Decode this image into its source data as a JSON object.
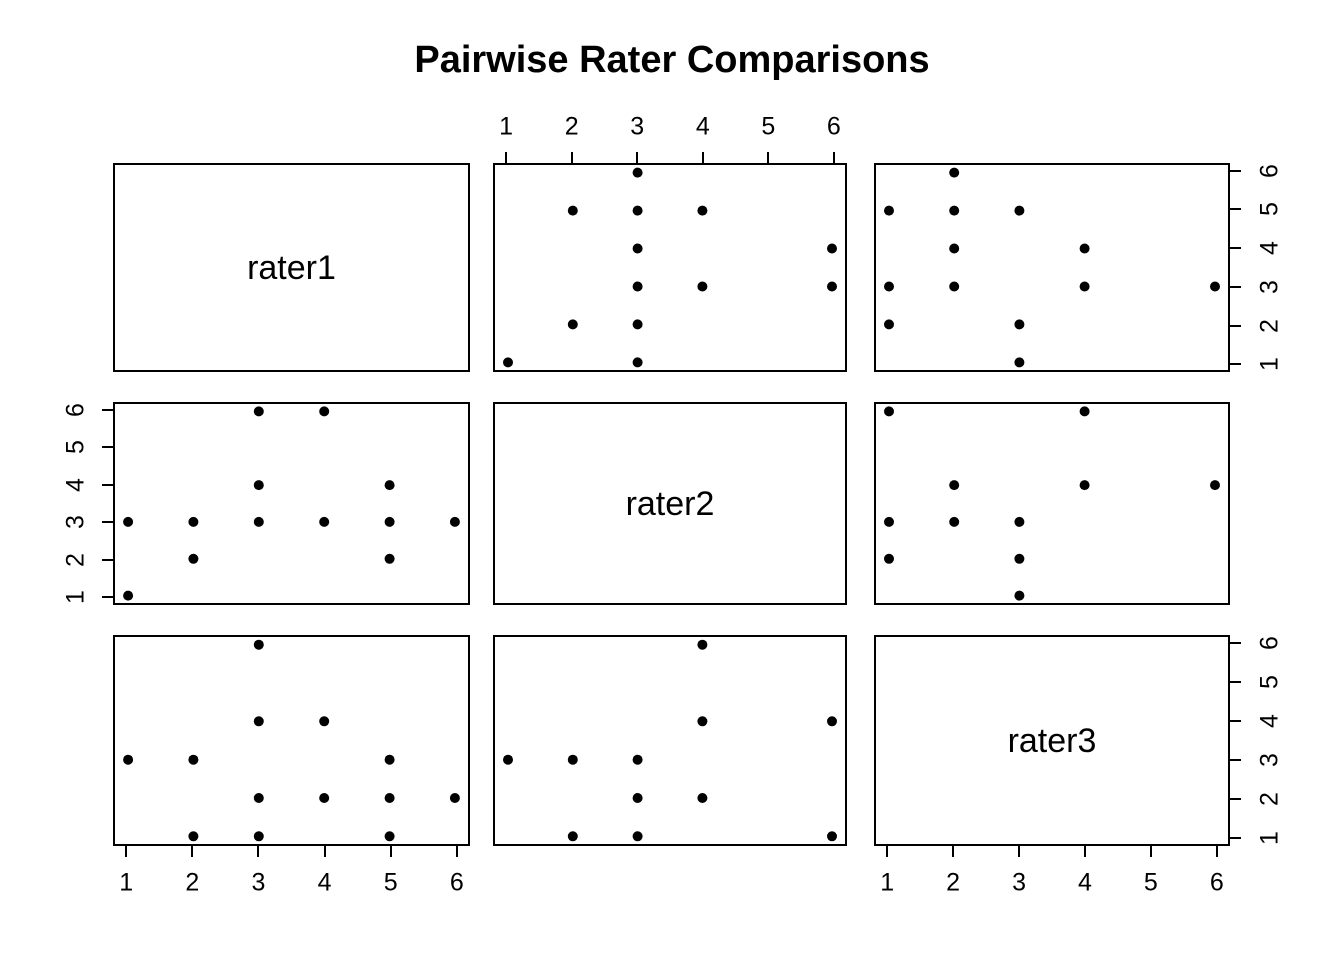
{
  "chart_data": {
    "type": "scatter",
    "subtype": "pairs_matrix",
    "title": "Pairwise Rater Comparisons",
    "variables": [
      "rater1",
      "rater2",
      "rater3"
    ],
    "axis_range": [
      1,
      6
    ],
    "axis_ticks": [
      1,
      2,
      3,
      4,
      5,
      6
    ],
    "grid": "off",
    "marker": "filled-circle",
    "point_color": "#000000",
    "background_color": "#ffffff",
    "panels": [
      {
        "row": 0,
        "col": 1,
        "x_var": "rater2",
        "y_var": "rater1",
        "points": [
          [
            1,
            1
          ],
          [
            2,
            2
          ],
          [
            2,
            5
          ],
          [
            3,
            1
          ],
          [
            3,
            2
          ],
          [
            3,
            3
          ],
          [
            3,
            4
          ],
          [
            3,
            5
          ],
          [
            3,
            6
          ],
          [
            4,
            3
          ],
          [
            4,
            5
          ],
          [
            6,
            3
          ],
          [
            6,
            4
          ]
        ]
      },
      {
        "row": 0,
        "col": 2,
        "x_var": "rater3",
        "y_var": "rater1",
        "points": [
          [
            1,
            2
          ],
          [
            1,
            3
          ],
          [
            1,
            5
          ],
          [
            2,
            3
          ],
          [
            2,
            4
          ],
          [
            2,
            5
          ],
          [
            2,
            6
          ],
          [
            3,
            1
          ],
          [
            3,
            2
          ],
          [
            3,
            5
          ],
          [
            4,
            3
          ],
          [
            4,
            4
          ],
          [
            6,
            3
          ]
        ]
      },
      {
        "row": 1,
        "col": 0,
        "x_var": "rater1",
        "y_var": "rater2",
        "points": [
          [
            1,
            1
          ],
          [
            1,
            3
          ],
          [
            2,
            2
          ],
          [
            2,
            3
          ],
          [
            3,
            3
          ],
          [
            3,
            4
          ],
          [
            3,
            6
          ],
          [
            4,
            3
          ],
          [
            4,
            6
          ],
          [
            5,
            2
          ],
          [
            5,
            3
          ],
          [
            5,
            4
          ],
          [
            6,
            3
          ]
        ]
      },
      {
        "row": 1,
        "col": 2,
        "x_var": "rater3",
        "y_var": "rater2",
        "points": [
          [
            1,
            2
          ],
          [
            1,
            3
          ],
          [
            1,
            6
          ],
          [
            2,
            3
          ],
          [
            2,
            4
          ],
          [
            3,
            1
          ],
          [
            3,
            2
          ],
          [
            3,
            3
          ],
          [
            4,
            4
          ],
          [
            4,
            6
          ],
          [
            6,
            4
          ]
        ]
      },
      {
        "row": 2,
        "col": 0,
        "x_var": "rater1",
        "y_var": "rater3",
        "points": [
          [
            1,
            3
          ],
          [
            2,
            1
          ],
          [
            2,
            3
          ],
          [
            3,
            1
          ],
          [
            3,
            2
          ],
          [
            3,
            4
          ],
          [
            3,
            6
          ],
          [
            4,
            2
          ],
          [
            4,
            4
          ],
          [
            5,
            1
          ],
          [
            5,
            2
          ],
          [
            5,
            3
          ],
          [
            6,
            2
          ]
        ]
      },
      {
        "row": 2,
        "col": 1,
        "x_var": "rater2",
        "y_var": "rater3",
        "points": [
          [
            1,
            3
          ],
          [
            2,
            1
          ],
          [
            2,
            3
          ],
          [
            3,
            1
          ],
          [
            3,
            2
          ],
          [
            3,
            3
          ],
          [
            4,
            2
          ],
          [
            4,
            4
          ],
          [
            4,
            6
          ],
          [
            6,
            1
          ],
          [
            6,
            4
          ]
        ]
      }
    ],
    "axes": [
      {
        "side": "top",
        "row": 0,
        "col": 1
      },
      {
        "side": "right",
        "row": 0,
        "col": 2
      },
      {
        "side": "left",
        "row": 1,
        "col": 0
      },
      {
        "side": "bottom",
        "row": 2,
        "col": 0
      },
      {
        "side": "bottom",
        "row": 2,
        "col": 2
      },
      {
        "side": "right",
        "row": 2,
        "col": 2
      }
    ]
  }
}
